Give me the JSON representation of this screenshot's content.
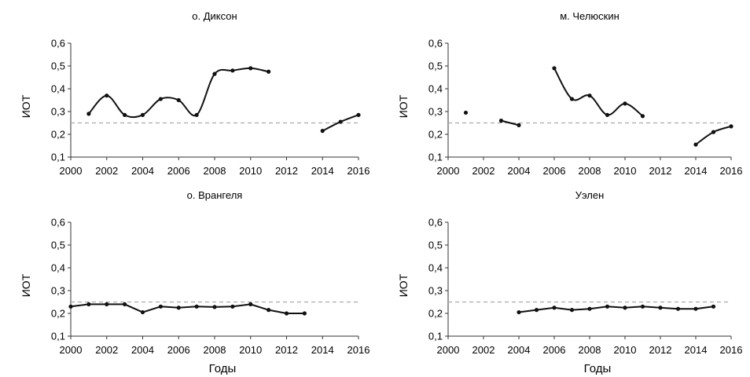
{
  "chart_data": [
    {
      "type": "line",
      "title": "о. Диксон",
      "ylabel": "ИОТ",
      "xlabel": "",
      "xlim": [
        2000,
        2016
      ],
      "ylim": [
        0.1,
        0.6
      ],
      "xticks": [
        "2000",
        "2002",
        "2004",
        "2006",
        "2008",
        "2010",
        "2012",
        "2014",
        "2016"
      ],
      "yticks": [
        "0,1",
        "0,2",
        "0,3",
        "0,4",
        "0,5",
        "0,6"
      ],
      "threshold": 0.25,
      "smooth": true,
      "segments": [
        [
          [
            2001,
            0.29
          ],
          [
            2002,
            0.37
          ],
          [
            2003,
            0.285
          ],
          [
            2004,
            0.285
          ],
          [
            2005,
            0.355
          ],
          [
            2006,
            0.35
          ],
          [
            2007,
            0.285
          ],
          [
            2008,
            0.465
          ],
          [
            2009,
            0.48
          ],
          [
            2010,
            0.49
          ],
          [
            2011,
            0.475
          ]
        ],
        [
          [
            2014,
            0.215
          ],
          [
            2015,
            0.255
          ],
          [
            2016,
            0.285
          ]
        ]
      ],
      "points": []
    },
    {
      "type": "line",
      "title": "м. Челюскин",
      "ylabel": "ИОТ",
      "xlabel": "",
      "xlim": [
        2000,
        2016
      ],
      "ylim": [
        0.1,
        0.6
      ],
      "xticks": [
        "2000",
        "2002",
        "2004",
        "2006",
        "2008",
        "2010",
        "2012",
        "2014",
        "2016"
      ],
      "yticks": [
        "0,1",
        "0,2",
        "0,3",
        "0,4",
        "0,5",
        "0,6"
      ],
      "threshold": 0.25,
      "smooth": true,
      "segments": [
        [
          [
            2003,
            0.26
          ],
          [
            2004,
            0.24
          ]
        ],
        [
          [
            2006,
            0.49
          ],
          [
            2007,
            0.355
          ],
          [
            2008,
            0.37
          ],
          [
            2009,
            0.285
          ],
          [
            2010,
            0.335
          ],
          [
            2011,
            0.28
          ]
        ],
        [
          [
            2014,
            0.155
          ],
          [
            2015,
            0.21
          ],
          [
            2016,
            0.235
          ]
        ]
      ],
      "points": [
        [
          2001,
          0.295
        ]
      ]
    },
    {
      "type": "line",
      "title": "о. Врангеля",
      "ylabel": "ИОТ",
      "xlabel": "Годы",
      "xlim": [
        2000,
        2016
      ],
      "ylim": [
        0.1,
        0.6
      ],
      "xticks": [
        "2000",
        "2002",
        "2004",
        "2006",
        "2008",
        "2010",
        "2012",
        "2014",
        "2016"
      ],
      "yticks": [
        "0,1",
        "0,2",
        "0,3",
        "0,4",
        "0,5",
        "0,6"
      ],
      "threshold": 0.25,
      "smooth": false,
      "segments": [
        [
          [
            2000,
            0.23
          ],
          [
            2001,
            0.24
          ],
          [
            2002,
            0.24
          ],
          [
            2003,
            0.24
          ],
          [
            2004,
            0.205
          ],
          [
            2005,
            0.23
          ],
          [
            2006,
            0.225
          ],
          [
            2007,
            0.23
          ],
          [
            2008,
            0.228
          ],
          [
            2009,
            0.23
          ],
          [
            2010,
            0.24
          ],
          [
            2011,
            0.215
          ],
          [
            2012,
            0.2
          ],
          [
            2013,
            0.2
          ]
        ]
      ],
      "points": []
    },
    {
      "type": "line",
      "title": "Уэлен",
      "ylabel": "ИОТ",
      "xlabel": "Годы",
      "xlim": [
        2000,
        2016
      ],
      "ylim": [
        0.1,
        0.6
      ],
      "xticks": [
        "2000",
        "2002",
        "2004",
        "2006",
        "2008",
        "2010",
        "2012",
        "2014",
        "2016"
      ],
      "yticks": [
        "0,1",
        "0,2",
        "0,3",
        "0,4",
        "0,5",
        "0,6"
      ],
      "threshold": 0.25,
      "smooth": false,
      "segments": [
        [
          [
            2004,
            0.205
          ],
          [
            2005,
            0.215
          ],
          [
            2006,
            0.225
          ],
          [
            2007,
            0.215
          ],
          [
            2008,
            0.22
          ],
          [
            2009,
            0.23
          ],
          [
            2010,
            0.225
          ],
          [
            2011,
            0.23
          ],
          [
            2012,
            0.225
          ],
          [
            2013,
            0.22
          ],
          [
            2014,
            0.22
          ],
          [
            2015,
            0.23
          ]
        ]
      ],
      "points": []
    }
  ],
  "colors": {
    "line": "#111111",
    "threshold": "#aaaaaa",
    "axis": "#333333"
  }
}
